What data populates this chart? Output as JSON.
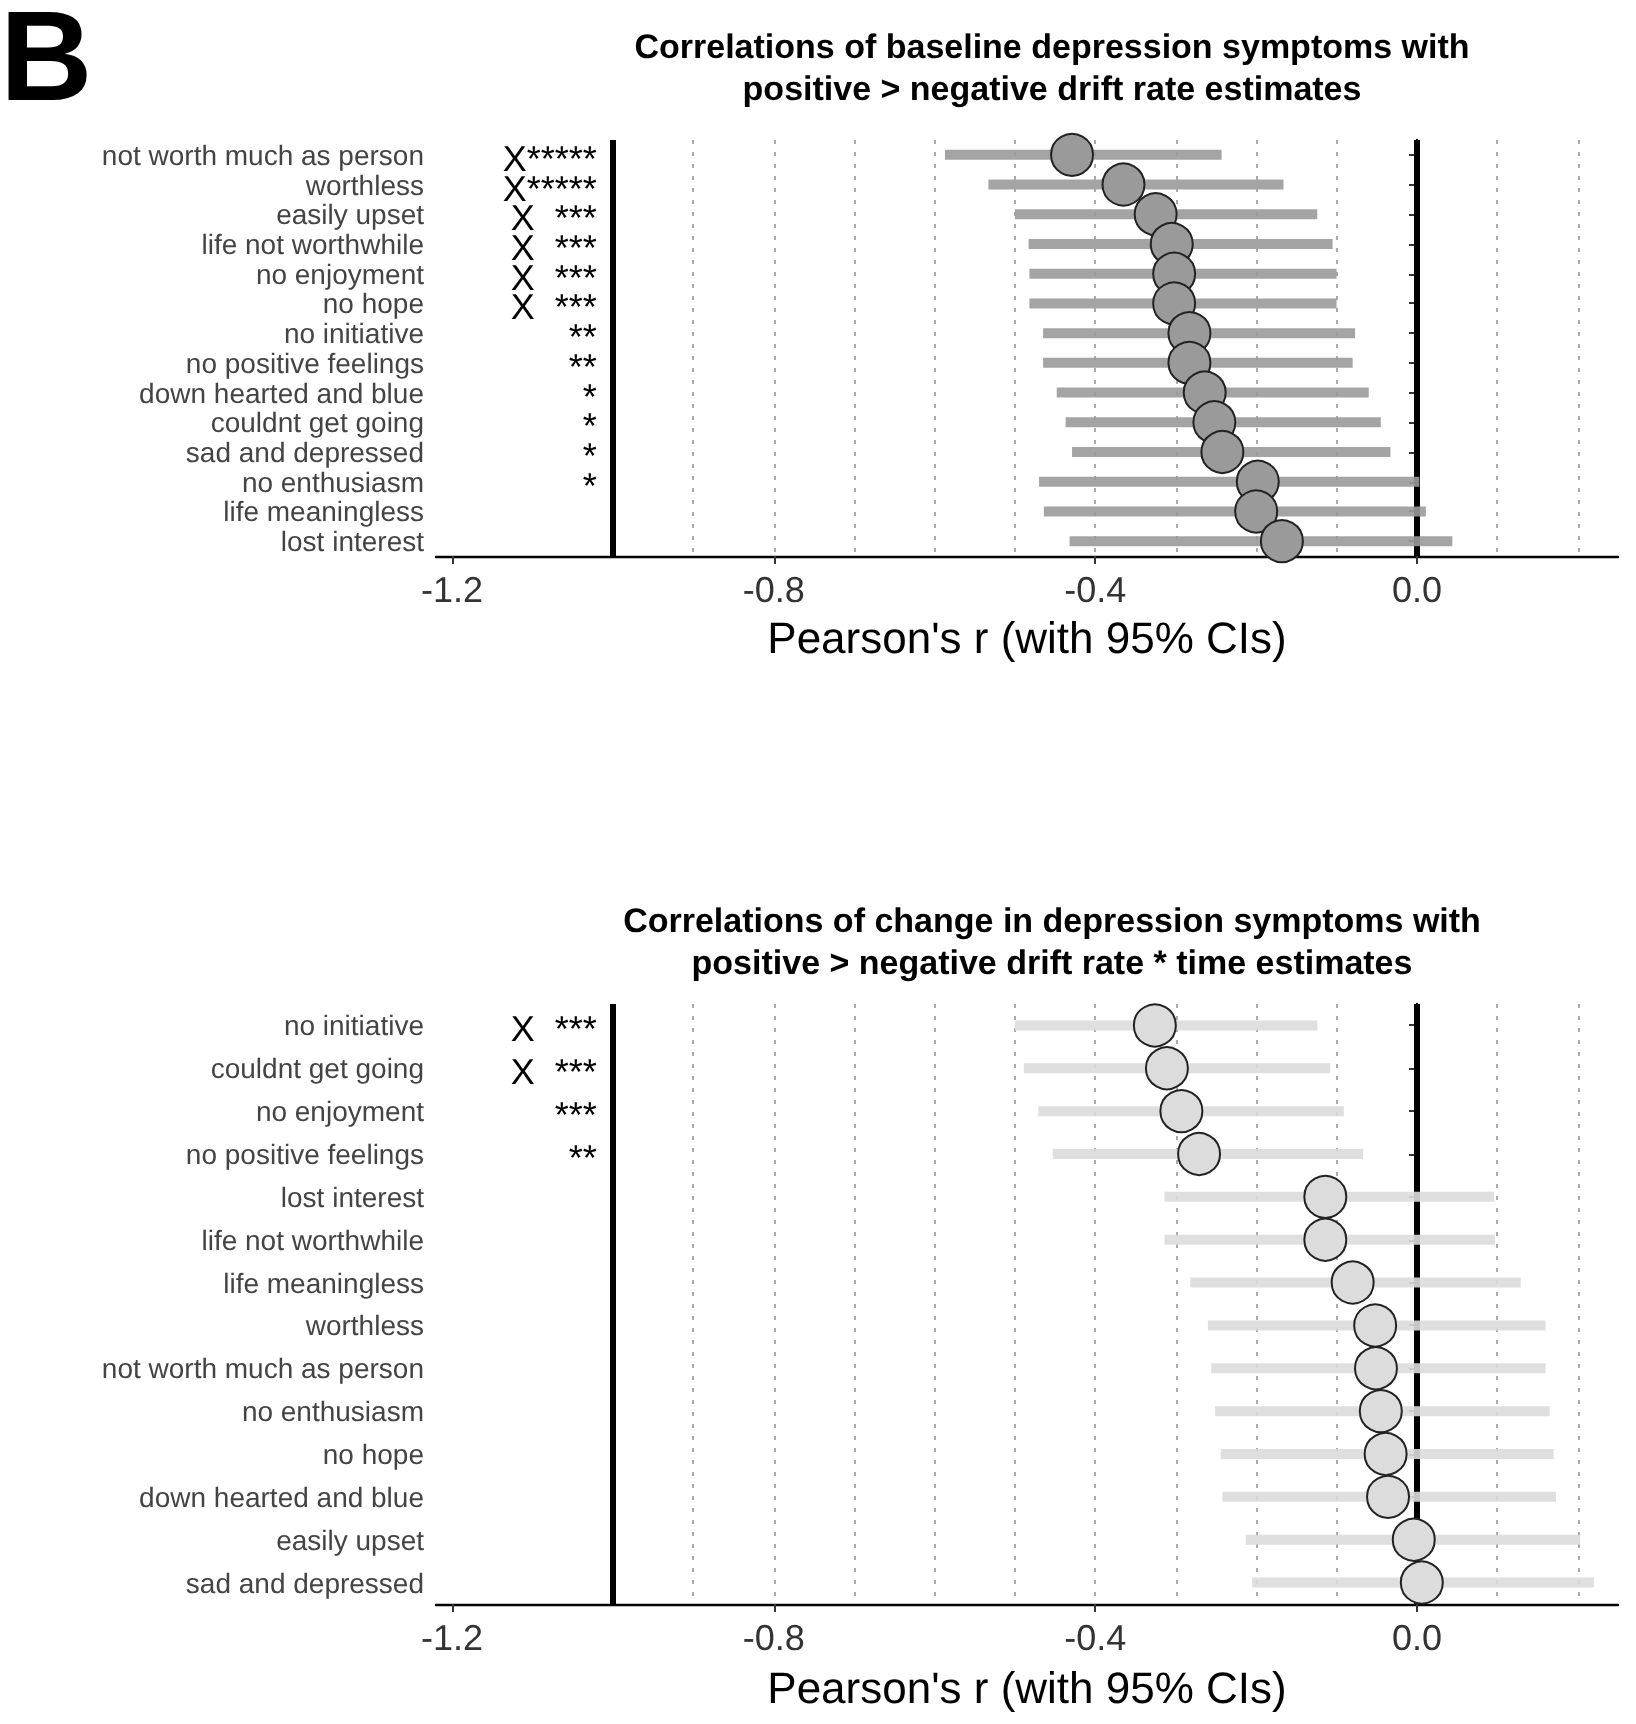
{
  "chart_data": [
    {
      "type": "scatter",
      "orientation": "horizontal",
      "title": "Correlations of baseline depression symptoms with\npositive > negative drift rate estimates",
      "xlabel": "Pearson's r (with 95% CIs)",
      "marker": "circle",
      "grid": false,
      "categories": [
        "not worth much as person",
        "worthless",
        "easily upset",
        "life not worthwhile",
        "no enjoyment",
        "no hope",
        "no initiative",
        "no positive feelings",
        "down hearted and blue",
        "couldnt get going",
        "sad and depressed",
        "no enthusiasm",
        "life meaningless",
        "lost interest"
      ],
      "series": [
        {
          "color": "#9a9a9a",
          "values": [
            -0.429,
            -0.365,
            -0.325,
            -0.305,
            -0.302,
            -0.302,
            -0.283,
            -0.283,
            -0.264,
            -0.252,
            -0.242,
            -0.198,
            -0.2,
            -0.168
          ],
          "errors": [
            [
              -0.587,
              -0.243
            ],
            [
              -0.533,
              -0.166
            ],
            [
              -0.5,
              -0.124
            ],
            [
              -0.483,
              -0.105
            ],
            [
              -0.482,
              -0.1
            ],
            [
              -0.482,
              -0.1
            ],
            [
              -0.465,
              -0.077
            ],
            [
              -0.465,
              -0.08
            ],
            [
              -0.448,
              -0.06
            ],
            [
              -0.437,
              -0.045
            ],
            [
              -0.429,
              -0.033
            ],
            [
              -0.47,
              0.003
            ],
            [
              -0.464,
              0.011
            ],
            [
              -0.432,
              0.044
            ]
          ]
        }
      ],
      "xlim": [
        -1.22,
        0.25
      ],
      "xticks": [
        -1.2,
        -0.8,
        -0.4,
        {
          "value": 0,
          "label": "0.0"
        }
      ],
      "ref_lines": [
        {
          "axis": "x",
          "value": -1,
          "color": "#000000",
          "line_style": "solid"
        },
        {
          "axis": "x",
          "value": 0,
          "color": "#000000",
          "line_style": "solid"
        },
        {
          "axis": "x",
          "value": -0.9,
          "color": "#aaaaaa",
          "line_style": "dotted"
        },
        {
          "axis": "x",
          "value": -0.8,
          "color": "#aaaaaa",
          "line_style": "dotted"
        },
        {
          "axis": "x",
          "value": -0.7,
          "color": "#aaaaaa",
          "line_style": "dotted"
        },
        {
          "axis": "x",
          "value": -0.6,
          "color": "#aaaaaa",
          "line_style": "dotted"
        },
        {
          "axis": "x",
          "value": -0.5,
          "color": "#aaaaaa",
          "line_style": "dotted"
        },
        {
          "axis": "x",
          "value": -0.4,
          "color": "#aaaaaa",
          "line_style": "dotted"
        },
        {
          "axis": "x",
          "value": -0.3,
          "color": "#aaaaaa",
          "line_style": "dotted"
        },
        {
          "axis": "x",
          "value": -0.2,
          "color": "#aaaaaa",
          "line_style": "dotted"
        },
        {
          "axis": "x",
          "value": -0.1,
          "color": "#aaaaaa",
          "line_style": "dotted"
        },
        {
          "axis": "x",
          "value": 0.1,
          "color": "#aaaaaa",
          "line_style": "dotted"
        },
        {
          "axis": "x",
          "value": 0.2,
          "color": "#aaaaaa",
          "line_style": "dotted"
        }
      ],
      "annotations": [
        "B",
        "X*****",
        "X*****",
        "X  ***",
        "X  ***",
        "X  ***",
        "X  ***",
        "**",
        "**",
        "*",
        "*",
        "*",
        "*"
      ]
    },
    {
      "type": "scatter",
      "orientation": "horizontal",
      "title": "Correlations of change in depression symptoms with\npositive > negative drift rate * time estimates",
      "xlabel": "Pearson's r (with 95% CIs)",
      "marker": "circle",
      "grid": false,
      "categories": [
        "no initiative",
        "couldnt get going",
        "no enjoyment",
        "no positive feelings",
        "lost interest",
        "life not worthwhile",
        "life meaningless",
        "worthless",
        "not worth much as person",
        "no enthusiasm",
        "no hope",
        "down hearted and blue",
        "easily upset",
        "sad and depressed"
      ],
      "series": [
        {
          "color": "#dcdcdc",
          "values": [
            -0.326,
            -0.311,
            -0.293,
            -0.271,
            -0.114,
            -0.114,
            -0.08,
            -0.052,
            -0.051,
            -0.045,
            -0.039,
            -0.036,
            -0.004,
            0.006
          ],
          "errors": [
            [
              -0.5,
              -0.124
            ],
            [
              -0.489,
              -0.108
            ],
            [
              -0.471,
              -0.091
            ],
            [
              -0.453,
              -0.067
            ],
            [
              -0.314,
              0.096
            ],
            [
              -0.314,
              0.097
            ],
            [
              -0.282,
              0.129
            ],
            [
              -0.26,
              0.16
            ],
            [
              -0.256,
              0.16
            ],
            [
              -0.251,
              0.165
            ],
            [
              -0.244,
              0.17
            ],
            [
              -0.242,
              0.173
            ],
            [
              -0.213,
              0.203
            ],
            [
              -0.205,
              0.22
            ]
          ]
        }
      ],
      "xlim": [
        -1.22,
        0.25
      ],
      "xticks": [
        -1.2,
        -0.8,
        -0.4,
        {
          "value": 0,
          "label": "0.0"
        }
      ],
      "ref_lines": [
        {
          "axis": "x",
          "value": -1,
          "color": "#000000",
          "line_style": "solid"
        },
        {
          "axis": "x",
          "value": 0,
          "color": "#000000",
          "line_style": "solid"
        },
        {
          "axis": "x",
          "value": -0.9,
          "color": "#aaaaaa",
          "line_style": "dotted"
        },
        {
          "axis": "x",
          "value": -0.8,
          "color": "#aaaaaa",
          "line_style": "dotted"
        },
        {
          "axis": "x",
          "value": -0.7,
          "color": "#aaaaaa",
          "line_style": "dotted"
        },
        {
          "axis": "x",
          "value": -0.6,
          "color": "#aaaaaa",
          "line_style": "dotted"
        },
        {
          "axis": "x",
          "value": -0.5,
          "color": "#aaaaaa",
          "line_style": "dotted"
        },
        {
          "axis": "x",
          "value": -0.4,
          "color": "#aaaaaa",
          "line_style": "dotted"
        },
        {
          "axis": "x",
          "value": -0.3,
          "color": "#aaaaaa",
          "line_style": "dotted"
        },
        {
          "axis": "x",
          "value": -0.2,
          "color": "#aaaaaa",
          "line_style": "dotted"
        },
        {
          "axis": "x",
          "value": -0.1,
          "color": "#aaaaaa",
          "line_style": "dotted"
        },
        {
          "axis": "x",
          "value": 0.1,
          "color": "#aaaaaa",
          "line_style": "dotted"
        },
        {
          "axis": "x",
          "value": 0.2,
          "color": "#aaaaaa",
          "line_style": "dotted"
        }
      ],
      "annotations": [
        "X  ***",
        "X  ***",
        "***",
        "**"
      ]
    }
  ]
}
